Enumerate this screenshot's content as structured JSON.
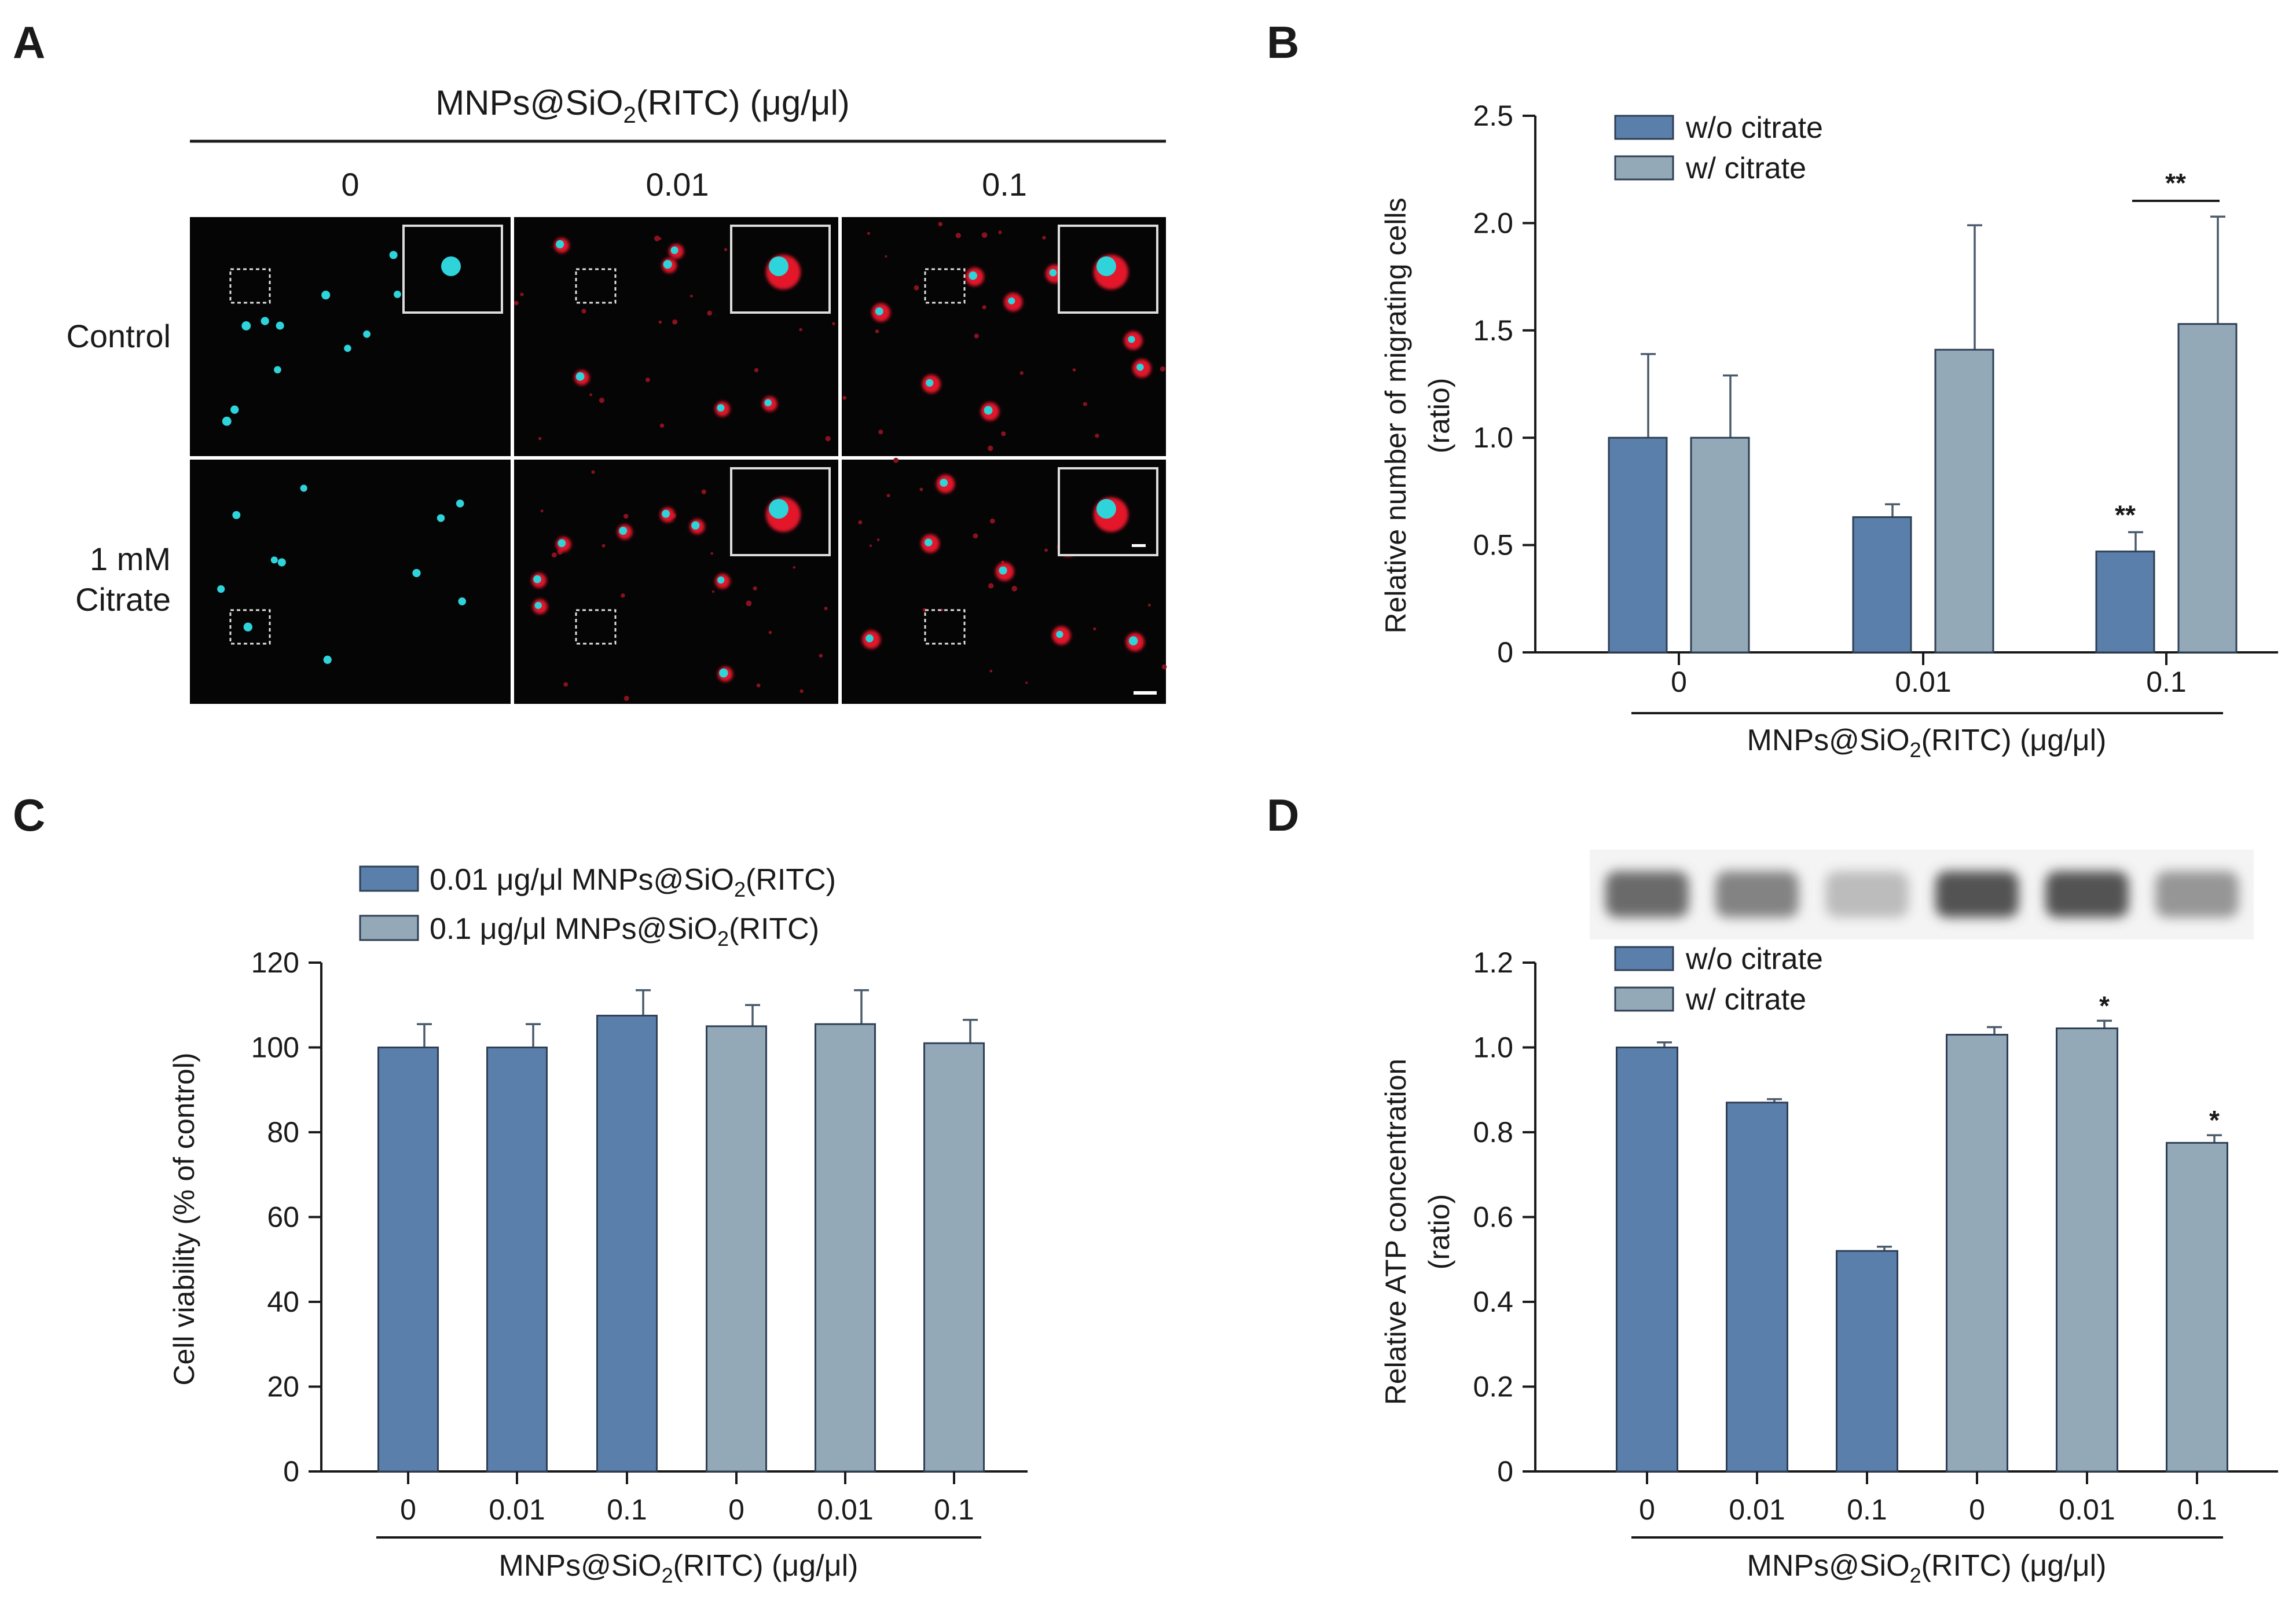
{
  "colors": {
    "dark_bar": "#5a7fab",
    "light_bar": "#93a9b7",
    "micrograph_bg": "#050505",
    "cyan": "#2fd3da",
    "red": "#e3182c"
  },
  "panel_a": {
    "letter": "A",
    "header_prefix": "MNPs@SiO",
    "header_sub": "2",
    "header_suffix": "(RITC) (μg/μl)",
    "columns": [
      "0",
      "0.01",
      "0.1"
    ],
    "rows": [
      {
        "label_lines": [
          "Control"
        ]
      },
      {
        "label_lines": [
          "1 mM",
          "Citrate"
        ]
      }
    ]
  },
  "panel_b": {
    "letter": "B",
    "xlabel_prefix": "MNPs@SiO",
    "xlabel_sub": "2",
    "xlabel_suffix": "(RITC) (μg/μl)",
    "sig_bracket_label": "**"
  },
  "panel_c": {
    "letter": "C",
    "xlabel_prefix": "MNPs@SiO",
    "xlabel_sub": "2",
    "xlabel_suffix": "(RITC) (μg/μl)"
  },
  "panel_d": {
    "letter": "D",
    "xlabel_prefix": "MNPs@SiO",
    "xlabel_sub": "2",
    "xlabel_suffix": "(RITC) (μg/μl)",
    "blot_intensities": [
      0.68,
      0.55,
      0.25,
      0.8,
      0.8,
      0.45
    ]
  },
  "chart_data": [
    {
      "panel": "B",
      "type": "bar",
      "categories": [
        "0",
        "0.01",
        "0.1"
      ],
      "series": [
        {
          "name": "w/o citrate",
          "color": "#5a7fab",
          "values": [
            1.0,
            0.63,
            0.47
          ],
          "errors": [
            0.39,
            0.06,
            0.09
          ],
          "labels": [
            "",
            "",
            "**"
          ]
        },
        {
          "name": "w/ citrate",
          "color": "#93a9b7",
          "values": [
            1.0,
            1.41,
            1.53
          ],
          "errors": [
            0.29,
            0.58,
            0.5
          ],
          "labels": [
            "",
            "",
            ""
          ]
        }
      ],
      "title": "",
      "xlabel": "MNPs@SiO2(RITC) (μg/μl)",
      "ylabel_lines": [
        "Relative number of migrating cells",
        "(ratio)"
      ],
      "ylim": [
        0,
        2.5
      ],
      "yticks": [
        "0",
        "0.5",
        "1.0",
        "1.5",
        "2.0",
        "2.5"
      ],
      "legend": [
        "w/o citrate",
        "w/ citrate"
      ],
      "legend_position": "top-left",
      "grid": false
    },
    {
      "panel": "C",
      "type": "bar",
      "categories": [
        "0",
        "0.01",
        "0.1",
        "0",
        "0.01",
        "0.1"
      ],
      "values": [
        100,
        100,
        107.5,
        105,
        105.5,
        101
      ],
      "errors": [
        5.5,
        5.5,
        6,
        5,
        8,
        5.5
      ],
      "group_of_bar": [
        0,
        0,
        0,
        1,
        1,
        1
      ],
      "groups": [
        {
          "legend_prefix": "0.01 μg/μl MNPs@SiO",
          "legend_sub": "2",
          "legend_suffix": "(RITC)",
          "color": "#5a7fab"
        },
        {
          "legend_prefix": "0.1 μg/μl MNPs@SiO",
          "legend_sub": "2",
          "legend_suffix": "(RITC)",
          "color": "#93a9b7"
        }
      ],
      "title": "",
      "xlabel": "MNPs@SiO2(RITC) (μg/μl)",
      "ylabel": "Cell viability  (% of control)",
      "ylim": [
        0,
        120
      ],
      "yticks": [
        "0",
        "20",
        "40",
        "60",
        "80",
        "100",
        "120"
      ],
      "legend_position": "top-left",
      "grid": false
    },
    {
      "panel": "D",
      "type": "bar",
      "categories": [
        "0",
        "0.01",
        "0.1",
        "0",
        "0.01",
        "0.1"
      ],
      "values": [
        1.0,
        0.87,
        0.52,
        1.03,
        1.045,
        0.775
      ],
      "errors": [
        0.012,
        0.008,
        0.01,
        0.018,
        0.018,
        0.018
      ],
      "labels": [
        "",
        "",
        "",
        "",
        "*",
        "*"
      ],
      "group_of_bar": [
        0,
        0,
        0,
        1,
        1,
        1
      ],
      "groups": [
        {
          "name": "w/o citrate",
          "color": "#5a7fab"
        },
        {
          "name": "w/ citrate",
          "color": "#93a9b7"
        }
      ],
      "title": "",
      "xlabel": "MNPs@SiO2(RITC) (μg/μl)",
      "ylabel_lines": [
        "Relative ATP concentration",
        "(ratio)"
      ],
      "ylim": [
        0,
        1.2
      ],
      "yticks": [
        "0",
        "0.2",
        "0.4",
        "0.6",
        "0.8",
        "1.0",
        "1.2"
      ],
      "legend_position": "top-left",
      "grid": false
    }
  ]
}
